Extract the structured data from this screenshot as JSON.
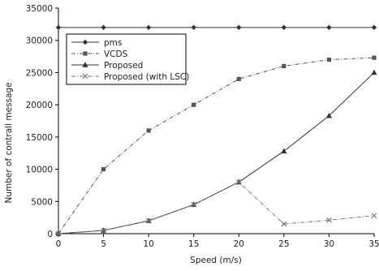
{
  "chart_data": {
    "type": "line",
    "xlabel": "Speed (m/s)",
    "ylabel": "Number of contrall message",
    "xlim": [
      0,
      35
    ],
    "ylim": [
      0,
      35000
    ],
    "xticks": [
      0,
      5,
      10,
      15,
      20,
      25,
      30,
      35
    ],
    "yticks": [
      0,
      5000,
      10000,
      15000,
      20000,
      25000,
      30000,
      35000
    ],
    "grid": false,
    "legend_position": "top-left",
    "series": [
      {
        "name": "pms",
        "marker": "diamond",
        "dash": "solid",
        "color": "#333333",
        "x": [
          0,
          5,
          10,
          15,
          20,
          25,
          30,
          35
        ],
        "y": [
          32000,
          32000,
          32000,
          32000,
          32000,
          32000,
          32000,
          32000
        ]
      },
      {
        "name": "VCDS",
        "marker": "square",
        "dash": "dashdot",
        "color": "#555555",
        "x": [
          0,
          5,
          10,
          15,
          20,
          25,
          30,
          35
        ],
        "y": [
          0,
          10000,
          16000,
          20000,
          24000,
          26000,
          27000,
          27300
        ]
      },
      {
        "name": "Proposed",
        "marker": "triangle",
        "dash": "solid",
        "color": "#333333",
        "x": [
          0,
          5,
          10,
          15,
          20,
          25,
          30,
          35
        ],
        "y": [
          0,
          500,
          2000,
          4500,
          8000,
          12800,
          18300,
          25000
        ]
      },
      {
        "name": "Proposed (with LSC)",
        "marker": "x",
        "dash": "dashdot",
        "color": "#777777",
        "x": [
          0,
          5,
          10,
          15,
          20,
          25,
          30,
          35
        ],
        "y": [
          0,
          500,
          2000,
          4500,
          8000,
          1500,
          2100,
          2800
        ]
      }
    ]
  }
}
